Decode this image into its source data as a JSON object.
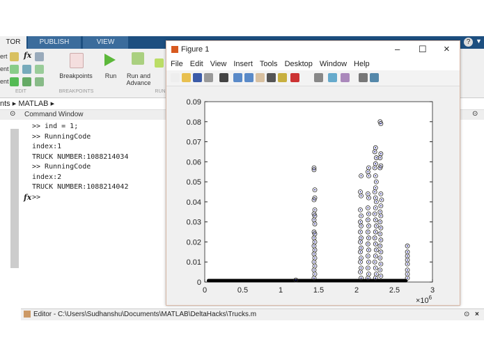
{
  "tabs": [
    {
      "label": "TOR"
    },
    {
      "label": "PUBLISH"
    },
    {
      "label": "VIEW"
    }
  ],
  "ribbon": {
    "edit_rows": [
      "ert",
      "ent",
      "ent"
    ],
    "breakpoints": "Breakpoints",
    "run": "Run",
    "run_advance_1": "Run and",
    "run_advance_2": "Advance",
    "sections": {
      "edit": "EDIT",
      "breakpoints": "BREAKPOINTS",
      "run": "RUN"
    }
  },
  "breadcrumb": {
    "items": [
      "nts",
      "MATLAB"
    ]
  },
  "command_window": {
    "title": "Command Window",
    "lines": [
      ">> ind = 1;",
      ">> RunningCode",
      "index:1",
      "TRUCK NUMBER:1088214034",
      ">> RunningCode",
      "index:2",
      "TRUCK NUMBER:1088214042"
    ],
    "prompt": ">>",
    "fx": "fx"
  },
  "editor": {
    "label": "Editor - C:\\Users\\Sudhanshu\\Documents\\MATLAB\\DeltaHacks\\Trucks.m"
  },
  "figure": {
    "title": "Figure 1",
    "menu": [
      "File",
      "Edit",
      "View",
      "Insert",
      "Tools",
      "Desktop",
      "Window",
      "Help"
    ],
    "toolbar": [
      "new-icon",
      "open-icon",
      "save-icon",
      "print-icon",
      "pointer-icon",
      "zoom-in-icon",
      "zoom-out-icon",
      "pan-icon",
      "rotate-icon",
      "data-cursor-icon",
      "brush-icon",
      "link-icon",
      "colorbar-icon",
      "legend-icon",
      "hide-tools-icon",
      "show-tools-icon"
    ]
  },
  "chart_data": {
    "type": "scatter",
    "marker": "circle",
    "marker_color": "#000080",
    "xlim": [
      0,
      3
    ],
    "ylim": [
      0,
      0.09
    ],
    "x_multiplier": "×10^6",
    "xticks": [
      "0",
      "0.5",
      "1",
      "1.5",
      "2",
      "2.5",
      "3"
    ],
    "yticks": [
      "0",
      "0.01",
      "0.02",
      "0.03",
      "0.04",
      "0.05",
      "0.06",
      "0.07",
      "0.08",
      "0.09"
    ],
    "baseline": {
      "y": 0,
      "x_from": 0.05,
      "x_to": 2.65
    },
    "points": [
      [
        1.2,
        0.001
      ],
      [
        1.44,
        0.057
      ],
      [
        1.44,
        0.056
      ],
      [
        1.45,
        0.046
      ],
      [
        1.45,
        0.042
      ],
      [
        1.44,
        0.041
      ],
      [
        1.45,
        0.036
      ],
      [
        1.44,
        0.034
      ],
      [
        1.45,
        0.033
      ],
      [
        1.44,
        0.031
      ],
      [
        1.45,
        0.029
      ],
      [
        1.44,
        0.025
      ],
      [
        1.45,
        0.024
      ],
      [
        1.44,
        0.022
      ],
      [
        1.45,
        0.02
      ],
      [
        1.44,
        0.018
      ],
      [
        1.45,
        0.016
      ],
      [
        1.44,
        0.014
      ],
      [
        1.45,
        0.012
      ],
      [
        1.44,
        0.01
      ],
      [
        1.45,
        0.008
      ],
      [
        1.44,
        0.006
      ],
      [
        1.45,
        0.004
      ],
      [
        1.44,
        0.002
      ],
      [
        2.06,
        0.053
      ],
      [
        2.05,
        0.045
      ],
      [
        2.06,
        0.043
      ],
      [
        2.05,
        0.036
      ],
      [
        2.06,
        0.033
      ],
      [
        2.05,
        0.03
      ],
      [
        2.06,
        0.028
      ],
      [
        2.05,
        0.025
      ],
      [
        2.06,
        0.022
      ],
      [
        2.05,
        0.02
      ],
      [
        2.06,
        0.017
      ],
      [
        2.05,
        0.015
      ],
      [
        2.06,
        0.012
      ],
      [
        2.05,
        0.01
      ],
      [
        2.06,
        0.007
      ],
      [
        2.05,
        0.005
      ],
      [
        2.06,
        0.002
      ],
      [
        2.16,
        0.057
      ],
      [
        2.15,
        0.055
      ],
      [
        2.16,
        0.053
      ],
      [
        2.15,
        0.044
      ],
      [
        2.16,
        0.042
      ],
      [
        2.15,
        0.037
      ],
      [
        2.16,
        0.034
      ],
      [
        2.15,
        0.031
      ],
      [
        2.16,
        0.028
      ],
      [
        2.15,
        0.025
      ],
      [
        2.16,
        0.022
      ],
      [
        2.15,
        0.019
      ],
      [
        2.16,
        0.016
      ],
      [
        2.15,
        0.013
      ],
      [
        2.16,
        0.01
      ],
      [
        2.15,
        0.007
      ],
      [
        2.16,
        0.004
      ],
      [
        2.15,
        0.002
      ],
      [
        2.25,
        0.067
      ],
      [
        2.24,
        0.065
      ],
      [
        2.26,
        0.062
      ],
      [
        2.25,
        0.059
      ],
      [
        2.24,
        0.057
      ],
      [
        2.25,
        0.053
      ],
      [
        2.26,
        0.05
      ],
      [
        2.25,
        0.047
      ],
      [
        2.24,
        0.045
      ],
      [
        2.25,
        0.042
      ],
      [
        2.26,
        0.04
      ],
      [
        2.25,
        0.037
      ],
      [
        2.24,
        0.034
      ],
      [
        2.25,
        0.031
      ],
      [
        2.26,
        0.028
      ],
      [
        2.25,
        0.025
      ],
      [
        2.24,
        0.022
      ],
      [
        2.25,
        0.019
      ],
      [
        2.26,
        0.016
      ],
      [
        2.25,
        0.013
      ],
      [
        2.24,
        0.01
      ],
      [
        2.25,
        0.007
      ],
      [
        2.26,
        0.004
      ],
      [
        2.25,
        0.002
      ],
      [
        2.31,
        0.08
      ],
      [
        2.32,
        0.079
      ],
      [
        2.32,
        0.064
      ],
      [
        2.31,
        0.062
      ],
      [
        2.32,
        0.058
      ],
      [
        2.31,
        0.057
      ],
      [
        2.32,
        0.044
      ],
      [
        2.33,
        0.041
      ],
      [
        2.32,
        0.038
      ],
      [
        2.31,
        0.035
      ],
      [
        2.32,
        0.033
      ],
      [
        2.31,
        0.03
      ],
      [
        2.32,
        0.027
      ],
      [
        2.31,
        0.024
      ],
      [
        2.32,
        0.021
      ],
      [
        2.31,
        0.018
      ],
      [
        2.32,
        0.015
      ],
      [
        2.31,
        0.012
      ],
      [
        2.32,
        0.009
      ],
      [
        2.31,
        0.006
      ],
      [
        2.32,
        0.003
      ],
      [
        2.67,
        0.018
      ],
      [
        2.67,
        0.015
      ],
      [
        2.67,
        0.013
      ],
      [
        2.67,
        0.011
      ],
      [
        2.67,
        0.009
      ],
      [
        2.67,
        0.006
      ],
      [
        2.67,
        0.004
      ],
      [
        2.67,
        0.002
      ]
    ]
  }
}
